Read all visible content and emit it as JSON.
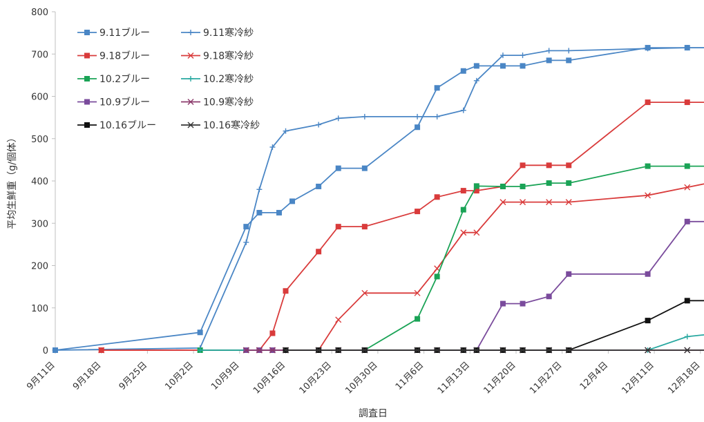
{
  "chart_data": {
    "type": "line",
    "title": "",
    "xlabel": "調査日",
    "ylabel": "平均生鮮重（g/個体）",
    "ylim": [
      0,
      800
    ],
    "yticks": [
      0,
      100,
      200,
      300,
      400,
      500,
      600,
      700,
      800
    ],
    "x_dates": [
      "9/11",
      "9/18",
      "9/25",
      "10/2",
      "10/9",
      "10/16",
      "10/23",
      "10/30",
      "11/6",
      "11/13",
      "11/20",
      "11/27",
      "12/4",
      "12/11",
      "12/18"
    ],
    "x_labels": [
      "9月11日",
      "9月18日",
      "9月25日",
      "10月2日",
      "10月9日",
      "10月16日",
      "10月23日",
      "10月30日",
      "11月6日",
      "11月13日",
      "11月20日",
      "11月27日",
      "12月4日",
      "12月11日",
      "12月18日"
    ],
    "grid": "none",
    "legend_position": "top-left",
    "series": [
      {
        "name": "9.11ブルー",
        "color": "#4a86c5",
        "marker": "square",
        "x": [
          "9/11",
          "10/3",
          "10/10",
          "10/12",
          "10/15",
          "10/17",
          "10/21",
          "10/24",
          "10/28",
          "11/5",
          "11/8",
          "11/12",
          "11/14",
          "11/18",
          "11/21",
          "11/25",
          "11/28",
          "12/10",
          "12/16",
          "12/22"
        ],
        "y": [
          0,
          42,
          292,
          325,
          325,
          352,
          387,
          430,
          430,
          527,
          620,
          660,
          672,
          672,
          672,
          685,
          685,
          715,
          715,
          715
        ]
      },
      {
        "name": "9.11寒冷紗",
        "color": "#4a86c5",
        "marker": "plus",
        "x": [
          "9/11",
          "10/3",
          "10/10",
          "10/12",
          "10/14",
          "10/16",
          "10/21",
          "10/24",
          "10/28",
          "11/5",
          "11/8",
          "11/12",
          "11/14",
          "11/18",
          "11/21",
          "11/25",
          "11/28",
          "12/10",
          "12/16",
          "12/22"
        ],
        "y": [
          0,
          5,
          255,
          380,
          480,
          518,
          533,
          548,
          552,
          552,
          552,
          567,
          637,
          697,
          697,
          708,
          708,
          713,
          715,
          715
        ]
      },
      {
        "name": "9.18ブルー",
        "color": "#d93b3b",
        "marker": "square",
        "x": [
          "9/18",
          "10/10",
          "10/12",
          "10/14",
          "10/16",
          "10/21",
          "10/24",
          "10/28",
          "11/5",
          "11/8",
          "11/12",
          "11/14",
          "11/18",
          "11/21",
          "11/25",
          "11/28",
          "12/10",
          "12/16",
          "12/22"
        ],
        "y": [
          0,
          0,
          0,
          40,
          140,
          233,
          292,
          292,
          328,
          362,
          377,
          377,
          387,
          437,
          437,
          437,
          586,
          586,
          586
        ]
      },
      {
        "name": "9.18寒冷紗",
        "color": "#d93b3b",
        "marker": "cross",
        "x": [
          "9/18",
          "10/10",
          "10/12",
          "10/14",
          "10/16",
          "10/21",
          "10/24",
          "10/28",
          "11/5",
          "11/8",
          "11/12",
          "11/14",
          "11/18",
          "11/21",
          "11/25",
          "11/28",
          "12/10",
          "12/16",
          "12/22"
        ],
        "y": [
          0,
          0,
          0,
          0,
          0,
          0,
          72,
          135,
          135,
          193,
          278,
          278,
          350,
          350,
          350,
          350,
          366,
          385,
          404
        ]
      },
      {
        "name": "10.2ブルー",
        "color": "#1aa356",
        "marker": "square",
        "x": [
          "10/3",
          "10/10",
          "10/28",
          "11/5",
          "11/8",
          "11/12",
          "11/14",
          "11/18",
          "11/21",
          "11/25",
          "11/28",
          "12/10",
          "12/16",
          "12/22"
        ],
        "y": [
          0,
          0,
          0,
          74,
          174,
          332,
          388,
          387,
          387,
          395,
          395,
          435,
          435,
          435
        ]
      },
      {
        "name": "10.2寒冷紗",
        "color": "#28a8a0",
        "marker": "plus",
        "x": [
          "10/3",
          "10/10",
          "10/28",
          "11/5",
          "11/8",
          "11/12",
          "11/14",
          "11/18",
          "11/21",
          "11/25",
          "11/28",
          "12/10",
          "12/16",
          "12/22"
        ],
        "y": [
          0,
          0,
          0,
          0,
          0,
          0,
          0,
          0,
          0,
          0,
          0,
          0,
          32,
          42
        ]
      },
      {
        "name": "10.9ブルー",
        "color": "#7a4b9c",
        "marker": "square",
        "x": [
          "10/10",
          "10/12",
          "10/14",
          "10/16",
          "10/21",
          "10/24",
          "10/28",
          "11/5",
          "11/8",
          "11/12",
          "11/14",
          "11/18",
          "11/21",
          "11/25",
          "11/28",
          "12/10",
          "12/16",
          "12/22"
        ],
        "y": [
          0,
          0,
          0,
          0,
          0,
          0,
          0,
          0,
          0,
          0,
          0,
          110,
          110,
          127,
          180,
          180,
          304,
          304
        ]
      },
      {
        "name": "10.9寒冷紗",
        "color": "#8b3a6b",
        "marker": "cross",
        "x": [
          "10/10",
          "10/12",
          "10/14",
          "10/16",
          "10/21",
          "10/24",
          "10/28",
          "11/5",
          "11/8",
          "11/12",
          "11/14",
          "11/18",
          "11/21",
          "11/25",
          "11/28",
          "12/10",
          "12/16",
          "12/22"
        ],
        "y": [
          0,
          0,
          0,
          0,
          0,
          0,
          0,
          0,
          0,
          0,
          0,
          0,
          0,
          0,
          0,
          0,
          0,
          0
        ]
      },
      {
        "name": "10.16ブルー",
        "color": "#111111",
        "marker": "square",
        "x": [
          "10/16",
          "10/21",
          "10/24",
          "10/28",
          "11/5",
          "11/8",
          "11/12",
          "11/14",
          "11/18",
          "11/21",
          "11/25",
          "11/28",
          "12/10",
          "12/16",
          "12/22"
        ],
        "y": [
          0,
          0,
          0,
          0,
          0,
          0,
          0,
          0,
          0,
          0,
          0,
          0,
          70,
          117,
          117
        ]
      },
      {
        "name": "10.16寒冷紗",
        "color": "#333333",
        "marker": "cross",
        "x": [
          "10/16",
          "10/21",
          "10/24",
          "10/28",
          "11/5",
          "11/8",
          "11/12",
          "11/14",
          "11/18",
          "11/21",
          "11/25",
          "11/28",
          "12/10",
          "12/16",
          "12/22"
        ],
        "y": [
          0,
          0,
          0,
          0,
          0,
          0,
          0,
          0,
          0,
          0,
          0,
          0,
          0,
          0,
          0
        ]
      }
    ]
  }
}
